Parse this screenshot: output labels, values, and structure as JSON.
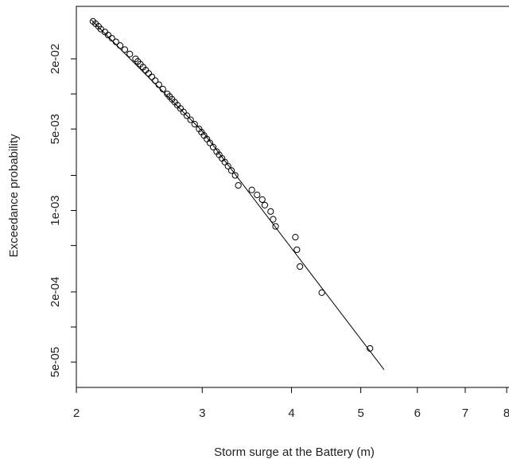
{
  "chart_data": {
    "type": "scatter",
    "x_label": "Storm surge at the Battery (m)",
    "y_label": "Exceedance probability",
    "log_x": true,
    "log_y": true,
    "xlim": [
      2,
      8.06
    ],
    "ylim": [
      3.03e-05,
      0.0564
    ],
    "xticks": [
      2,
      3,
      4,
      5,
      6,
      7,
      8
    ],
    "yticks": [
      {
        "value": 0.02,
        "label": "2e-02"
      },
      {
        "value": 0.005,
        "label": "5e-03"
      },
      {
        "value": 0.001,
        "label": "1e-03"
      },
      {
        "value": 0.0002,
        "label": "2e-04"
      },
      {
        "value": 5e-05,
        "label": "5e-05"
      }
    ],
    "yticks_minor": [
      0.01,
      0.002,
      0.0005,
      0.0001
    ],
    "color": "#000000",
    "x": [
      2.11,
      2.128,
      2.148,
      2.164,
      2.193,
      2.216,
      2.243,
      2.272,
      2.303,
      2.338,
      2.376,
      2.42,
      2.438,
      2.458,
      2.479,
      2.501,
      2.525,
      2.551,
      2.579,
      2.609,
      2.643,
      2.681,
      2.701,
      2.722,
      2.746,
      2.77,
      2.797,
      2.825,
      2.856,
      2.89,
      2.928,
      2.97,
      2.993,
      3.018,
      3.046,
      3.075,
      3.108,
      3.143,
      3.169,
      3.198,
      3.227,
      3.26,
      3.296,
      3.336,
      3.37,
      3.52,
      3.58,
      3.64,
      3.67,
      3.74,
      3.77,
      3.8,
      4.05,
      4.07,
      4.11,
      4.41,
      5.15
    ],
    "values": [
      0.0419,
      0.04,
      0.038,
      0.036,
      0.034,
      0.032,
      0.03,
      0.028,
      0.026,
      0.024,
      0.022,
      0.02,
      0.019,
      0.018,
      0.017,
      0.016,
      0.015,
      0.014,
      0.013,
      0.012,
      0.011,
      0.01,
      0.0095,
      0.009,
      0.0085,
      0.008,
      0.0075,
      0.007,
      0.0065,
      0.006,
      0.0055,
      0.005,
      0.0047,
      0.0044,
      0.0041,
      0.0038,
      0.0035,
      0.0032,
      0.003,
      0.0028,
      0.0026,
      0.0024,
      0.0022,
      0.002,
      0.00164,
      0.0015,
      0.00136,
      0.00124,
      0.00111,
      0.00098,
      0.00084,
      0.00073,
      0.00059,
      0.00046,
      0.00033,
      0.000197,
      6.55e-05
    ],
    "fit_line": {
      "x": [
        2.1,
        3.0,
        5.39
      ],
      "values": [
        0.043,
        0.0048,
        4.3e-05
      ]
    }
  }
}
